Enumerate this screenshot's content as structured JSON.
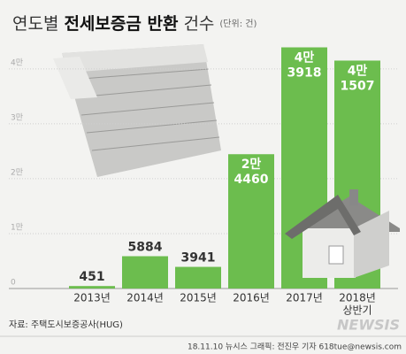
{
  "chart_data": {
    "type": "bar",
    "title_parts": [
      "연도별",
      "전세보증금 반환",
      "건수"
    ],
    "unit": "(단위: 건)",
    "categories": [
      [
        "2013년"
      ],
      [
        "2014년"
      ],
      [
        "2015년"
      ],
      [
        "2016년"
      ],
      [
        "2017년"
      ],
      [
        "2018년",
        "상반기"
      ]
    ],
    "values": [
      451,
      5884,
      3941,
      24460,
      43918,
      41507
    ],
    "value_labels": [
      [
        "451"
      ],
      [
        "5884"
      ],
      [
        "3941"
      ],
      [
        "2만",
        "4460"
      ],
      [
        "4만",
        "3918"
      ],
      [
        "4만",
        "1507"
      ]
    ],
    "color": "#6cbd4e",
    "ylim": [
      0,
      44000
    ],
    "yticks": [
      0,
      {
        "value": 10000,
        "label": "1만"
      },
      {
        "value": 20000,
        "label": "2만"
      },
      {
        "value": 30000,
        "label": "3만"
      },
      {
        "value": 40000,
        "label": "4만"
      }
    ],
    "grid": true,
    "source": "자료: 주택도시보증공사(HUG)",
    "credit": "18.11.10 뉴시스 그래픽: 전진우 기자 618tue@newsis.com",
    "logo": "NEWSIS"
  }
}
